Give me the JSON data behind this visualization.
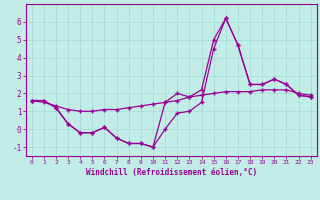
{
  "background_color": "#c2ece6",
  "grid_color": "#a8ddd6",
  "line_color": "#990099",
  "xlabel": "Windchill (Refroidissement éolien,°C)",
  "x": [
    0,
    1,
    2,
    3,
    4,
    5,
    6,
    7,
    8,
    9,
    10,
    11,
    12,
    13,
    14,
    15,
    16,
    17,
    18,
    19,
    20,
    21,
    22,
    23
  ],
  "line1": [
    1.6,
    1.6,
    1.2,
    0.3,
    -0.2,
    -0.2,
    0.1,
    -0.5,
    -0.8,
    -0.8,
    -1.0,
    0.0,
    0.9,
    1.0,
    1.5,
    4.5,
    6.2,
    4.7,
    2.5,
    2.5,
    2.8,
    2.5,
    1.9,
    1.8
  ],
  "line2": [
    1.6,
    1.6,
    1.2,
    0.3,
    -0.2,
    -0.2,
    0.1,
    -0.5,
    -0.8,
    -0.8,
    -1.0,
    1.5,
    2.0,
    1.8,
    2.2,
    5.0,
    6.2,
    4.7,
    2.5,
    2.5,
    2.8,
    2.5,
    1.9,
    1.8
  ],
  "line3": [
    1.6,
    1.5,
    1.3,
    1.1,
    1.0,
    1.0,
    1.1,
    1.1,
    1.2,
    1.3,
    1.4,
    1.5,
    1.6,
    1.8,
    1.9,
    2.0,
    2.1,
    2.1,
    2.1,
    2.2,
    2.2,
    2.2,
    2.0,
    1.9
  ],
  "ylim": [
    -1.5,
    7.0
  ],
  "xlim": [
    -0.5,
    23.5
  ],
  "yticks": [
    -1,
    0,
    1,
    2,
    3,
    4,
    5,
    6
  ],
  "xticks": [
    0,
    1,
    2,
    3,
    4,
    5,
    6,
    7,
    8,
    9,
    10,
    11,
    12,
    13,
    14,
    15,
    16,
    17,
    18,
    19,
    20,
    21,
    22,
    23
  ]
}
